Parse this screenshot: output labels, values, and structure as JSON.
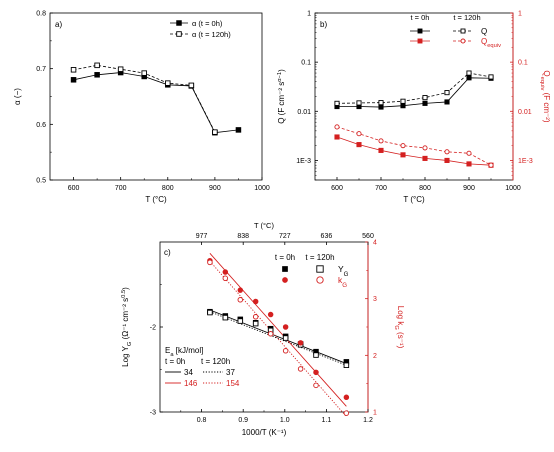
{
  "colors": {
    "black": "#000000",
    "red": "#d42020",
    "grey": "#444444"
  },
  "chart_data": [
    {
      "id": "a",
      "type": "line",
      "panel_label": "a)",
      "xlabel": "T (°C)",
      "ylabel": "α (−)",
      "xlim": [
        550,
        1000
      ],
      "ylim": [
        0.5,
        0.8
      ],
      "xticks": [
        "600",
        "700",
        "800",
        "900",
        "1000"
      ],
      "yticks": [
        "0.5",
        "0.6",
        "0.7",
        "0.8"
      ],
      "legend_position": "top-right",
      "series": [
        {
          "name": "α (t = 0h)",
          "style": "solid-filled-square",
          "color": "#000000",
          "x": [
            600,
            650,
            700,
            750,
            800,
            850,
            900,
            950
          ],
          "y": [
            0.68,
            0.689,
            0.693,
            0.686,
            0.671,
            0.669,
            0.585,
            0.59
          ]
        },
        {
          "name": "α (t = 120h)",
          "style": "dashed-open-square",
          "color": "#000000",
          "x": [
            600,
            650,
            700,
            750,
            800,
            850,
            900
          ],
          "y": [
            0.698,
            0.706,
            0.699,
            0.692,
            0.674,
            0.67,
            0.586
          ]
        }
      ]
    },
    {
      "id": "b",
      "type": "line",
      "panel_label": "b)",
      "xlabel": "T (°C)",
      "ylabel_left": "Q (F cm⁻² s^(α−1))",
      "ylabel_right": "Q_equiv (F cm⁻²)",
      "xlim": [
        550,
        1000
      ],
      "ylim_log": [
        0.0004,
        1
      ],
      "yscale": "log",
      "xticks": [
        "600",
        "700",
        "800",
        "900",
        "1000"
      ],
      "yticks_left": [
        "1E-3",
        "0.01",
        "0.1",
        "1"
      ],
      "yticks_right": [
        "1E-3",
        "0.01",
        "0.1",
        "1"
      ],
      "legend_headers": [
        "t = 0h",
        "t = 120h"
      ],
      "legend_position": "top-right",
      "series": [
        {
          "name": "Q",
          "time": "t = 0h",
          "style": "solid-filled-square",
          "color": "#000000",
          "x": [
            600,
            650,
            700,
            750,
            800,
            850,
            900,
            950
          ],
          "y": [
            0.0125,
            0.0125,
            0.0122,
            0.013,
            0.0145,
            0.0155,
            0.048,
            0.047
          ]
        },
        {
          "name": "Q",
          "time": "t = 120h",
          "style": "dashed-open-square",
          "color": "#000000",
          "x": [
            600,
            650,
            700,
            750,
            800,
            850,
            900,
            950
          ],
          "y": [
            0.0145,
            0.0148,
            0.015,
            0.016,
            0.019,
            0.024,
            0.06,
            0.05
          ]
        },
        {
          "name": "Q_equiv",
          "time": "t = 0h",
          "style": "solid-filled-square",
          "color": "#d42020",
          "x": [
            600,
            650,
            700,
            750,
            800,
            850,
            900,
            950
          ],
          "y": [
            0.003,
            0.0021,
            0.0016,
            0.0013,
            0.0011,
            0.001,
            0.00085,
            0.0008
          ]
        },
        {
          "name": "Q_equiv",
          "time": "t = 120h",
          "style": "dashed-open-circle",
          "color": "#d42020",
          "x": [
            600,
            650,
            700,
            750,
            800,
            850,
            900,
            950
          ],
          "y": [
            0.0048,
            0.0035,
            0.0025,
            0.002,
            0.0018,
            0.0015,
            0.0014,
            0.0008
          ]
        }
      ]
    },
    {
      "id": "c",
      "type": "scatter",
      "panel_label": "c)",
      "xlabel": "1000/T (K⁻¹)",
      "ylabel_left": "Log Y_G (Ω⁻¹ cm⁻² s^0.5)",
      "ylabel_right": "Log k_G (s⁻¹)",
      "top_axis_label": "T (°C)",
      "top_ticks": [
        {
          "label": "977",
          "x": 0.8
        },
        {
          "label": "838",
          "x": 0.9
        },
        {
          "label": "727",
          "x": 1.0
        },
        {
          "label": "636",
          "x": 1.1
        },
        {
          "label": "560",
          "x": 1.2
        }
      ],
      "xlim": [
        0.7,
        1.2
      ],
      "ylim_left": [
        -3,
        -1
      ],
      "ylim_right": [
        1,
        4
      ],
      "xticks": [
        "0.8",
        "0.9",
        "1.0",
        "1.1",
        "1.2"
      ],
      "yticks_left": [
        "-3",
        "-2"
      ],
      "yticks_right": [
        "1",
        "2",
        "3",
        "4"
      ],
      "legend_headers": [
        "t = 0h",
        "t = 120h"
      ],
      "legend_rows": [
        "Y_G",
        "k_G"
      ],
      "legend_position": "top-right",
      "ea_header": "Eₐ [kJ/mol]",
      "ea_columns": [
        "t = 0h",
        "t = 120h"
      ],
      "ea_rows": [
        {
          "v0": "34",
          "v120": "37",
          "color": "#000000"
        },
        {
          "v0": "146",
          "v120": "154",
          "color": "#d42020"
        }
      ],
      "series": [
        {
          "name": "Y_G",
          "time": "t = 0h",
          "axis": "left",
          "style": "filled-square",
          "color": "#000000",
          "x": [
            0.82,
            0.857,
            0.893,
            0.93,
            0.966,
            1.002,
            1.038,
            1.075,
            1.148
          ],
          "y": [
            -1.82,
            -1.87,
            -1.91,
            -1.95,
            -2.02,
            -2.11,
            -2.2,
            -2.29,
            -2.41
          ]
        },
        {
          "name": "Y_G",
          "time": "t = 120h",
          "axis": "left",
          "style": "open-square",
          "color": "#000000",
          "x": [
            0.82,
            0.857,
            0.893,
            0.93,
            0.966,
            1.002,
            1.038,
            1.075,
            1.148
          ],
          "y": [
            -1.83,
            -1.89,
            -1.93,
            -1.96,
            -2.04,
            -2.13,
            -2.21,
            -2.33,
            -2.45
          ]
        },
        {
          "name": "k_G",
          "time": "t = 0h",
          "axis": "right",
          "style": "filled-circle",
          "color": "#d42020",
          "x": [
            0.82,
            0.857,
            0.893,
            0.93,
            0.966,
            1.002,
            1.038,
            1.075,
            1.148
          ],
          "y": [
            3.67,
            3.47,
            3.15,
            2.95,
            2.72,
            2.5,
            2.22,
            1.7,
            1.26
          ]
        },
        {
          "name": "k_G",
          "time": "t = 120h",
          "axis": "right",
          "style": "open-circle",
          "color": "#d42020",
          "x": [
            0.82,
            0.857,
            0.893,
            0.93,
            0.966,
            1.002,
            1.038,
            1.075,
            1.148
          ],
          "y": [
            3.64,
            3.36,
            2.98,
            2.68,
            2.38,
            2.08,
            1.76,
            1.47,
            0.98
          ]
        }
      ],
      "fits": [
        {
          "series": "Y_G t = 0h",
          "axis": "left",
          "style": "solid",
          "color": "#000000",
          "x": [
            0.82,
            1.148
          ],
          "y": [
            -1.8,
            -2.43
          ]
        },
        {
          "series": "Y_G t = 120h",
          "axis": "left",
          "style": "dotted",
          "color": "#000000",
          "x": [
            0.82,
            1.148
          ],
          "y": [
            -1.82,
            -2.45
          ]
        },
        {
          "series": "k_G t = 0h",
          "axis": "right",
          "style": "solid",
          "color": "#d42020",
          "x": [
            0.82,
            1.148
          ],
          "y": [
            3.8,
            1.1
          ]
        },
        {
          "series": "k_G t = 120h",
          "axis": "right",
          "style": "dotted",
          "color": "#d42020",
          "x": [
            0.82,
            1.148
          ],
          "y": [
            3.66,
            0.92
          ]
        }
      ]
    }
  ]
}
